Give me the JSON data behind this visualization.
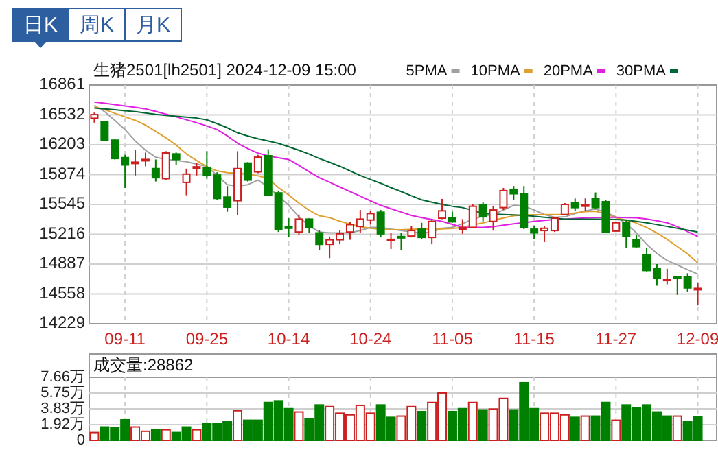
{
  "chart_data": [
    {
      "type": "candlestick",
      "title": "生猪2501[lh2501] 2024-12-09 15:00",
      "annotations": [
        "日K",
        "周K",
        "月K"
      ],
      "categories": [
        null,
        null,
        null,
        "09-11",
        null,
        null,
        null,
        null,
        null,
        null,
        null,
        "09-25",
        null,
        null,
        null,
        null,
        null,
        null,
        null,
        "10-14",
        null,
        null,
        null,
        null,
        null,
        null,
        null,
        "10-24",
        null,
        null,
        null,
        null,
        null,
        null,
        null,
        "11-05",
        null,
        null,
        null,
        null,
        null,
        null,
        null,
        "11-15",
        null,
        null,
        null,
        null,
        null,
        null,
        null,
        "11-27",
        null,
        null,
        null,
        null,
        null,
        null,
        null,
        "12-09"
      ],
      "ohlc": [
        [
          16495,
          16557,
          16446,
          16535
        ],
        [
          16456,
          16466,
          16244,
          16254
        ],
        [
          16254,
          16264,
          16041,
          16051
        ],
        [
          16061,
          16092,
          15727,
          15980
        ],
        [
          15996,
          16142,
          15864,
          16011
        ],
        [
          16031,
          16117,
          15965,
          16041
        ],
        [
          15940,
          16041,
          15798,
          15839
        ],
        [
          15829,
          16132,
          15813,
          16112
        ],
        [
          16102,
          16117,
          15980,
          16041
        ],
        [
          15788,
          15940,
          15646,
          15879
        ],
        [
          15950,
          16001,
          15864,
          15960
        ],
        [
          15950,
          16132,
          15829,
          15864
        ],
        [
          15869,
          15899,
          15596,
          15611
        ],
        [
          15626,
          15748,
          15464,
          15515
        ],
        [
          15586,
          16132,
          15424,
          15940
        ],
        [
          16001,
          16011,
          15798,
          15813
        ],
        [
          15904,
          16092,
          15889,
          16066
        ],
        [
          16082,
          16153,
          15636,
          15646
        ],
        [
          15672,
          15697,
          15241,
          15272
        ],
        [
          15297,
          15393,
          15181,
          15287
        ],
        [
          15241,
          15434,
          15206,
          15383
        ],
        [
          15383,
          15393,
          15231,
          15292
        ],
        [
          15231,
          15257,
          15039,
          15105
        ],
        [
          15105,
          15191,
          14953,
          15155
        ],
        [
          15155,
          15257,
          15105,
          15221
        ],
        [
          15241,
          15348,
          15155,
          15322
        ],
        [
          15302,
          15484,
          15231,
          15383
        ],
        [
          15373,
          15474,
          15322,
          15444
        ],
        [
          15459,
          15484,
          15181,
          15221
        ],
        [
          15150,
          15231,
          15054,
          15160
        ],
        [
          15191,
          15231,
          15044,
          15181
        ],
        [
          15196,
          15307,
          15181,
          15257
        ],
        [
          15272,
          15343,
          15160,
          15181
        ],
        [
          15181,
          15383,
          15105,
          15358
        ],
        [
          15393,
          15606,
          15383,
          15474
        ],
        [
          15398,
          15464,
          15343,
          15353
        ],
        [
          15277,
          15383,
          15221,
          15287
        ],
        [
          15292,
          15545,
          15282,
          15525
        ],
        [
          15545,
          15575,
          15358,
          15408
        ],
        [
          15358,
          15525,
          15256,
          15484
        ],
        [
          15510,
          15727,
          15484,
          15697
        ],
        [
          15712,
          15748,
          15596,
          15662
        ],
        [
          15662,
          15748,
          15272,
          15292
        ],
        [
          15272,
          15312,
          15160,
          15231
        ],
        [
          15257,
          15307,
          15130,
          15282
        ],
        [
          15257,
          15408,
          15241,
          15393
        ],
        [
          15434,
          15560,
          15424,
          15545
        ],
        [
          15560,
          15611,
          15474,
          15510
        ],
        [
          15530,
          15611,
          15474,
          15540
        ],
        [
          15611,
          15677,
          15494,
          15510
        ],
        [
          15575,
          15596,
          15231,
          15241
        ],
        [
          15251,
          15358,
          15241,
          15343
        ],
        [
          15343,
          15373,
          15069,
          15191
        ],
        [
          15155,
          15206,
          15069,
          15079
        ],
        [
          14988,
          15069,
          14806,
          14816
        ],
        [
          14836,
          14887,
          14649,
          14735
        ],
        [
          14710,
          14836,
          14664,
          14720
        ],
        [
          14750,
          14750,
          14548,
          14740
        ],
        [
          14750,
          14786,
          14583,
          14624
        ],
        [
          14609,
          14685,
          14431,
          14619
        ]
      ],
      "series": [
        {
          "name": "5PMA",
          "type": "line",
          "color": "#a0a0a0",
          "values": [
            16638,
            16568,
            16472,
            16370,
            16244,
            16142,
            16066,
            16041,
            16031,
            16016,
            15990,
            15965,
            15864,
            15763,
            15748,
            15763,
            15813,
            15737,
            15636,
            15535,
            15408,
            15307,
            15241,
            15231,
            15231,
            15231,
            15257,
            15292,
            15292,
            15272,
            15257,
            15241,
            15231,
            15241,
            15282,
            15292,
            15332,
            15383,
            15418,
            15434,
            15484,
            15535,
            15525,
            15484,
            15434,
            15403,
            15408,
            15444,
            15474,
            15494,
            15459,
            15408,
            15332,
            15231,
            15105,
            15004,
            14928,
            14877,
            14826,
            14776
          ]
        },
        {
          "name": "10PMA",
          "type": "line",
          "color": "#e0a030",
          "values": [
            16623,
            16590,
            16550,
            16510,
            16472,
            16420,
            16350,
            16280,
            16200,
            16100,
            16030,
            15960,
            15915,
            15895,
            15889,
            15880,
            15860,
            15830,
            15730,
            15650,
            15560,
            15480,
            15420,
            15400,
            15360,
            15330,
            15300,
            15282,
            15270,
            15265,
            15265,
            15270,
            15272,
            15272,
            15275,
            15280,
            15290,
            15320,
            15340,
            15370,
            15395,
            15420,
            15430,
            15432,
            15434,
            15434,
            15436,
            15450,
            15465,
            15470,
            15440,
            15400,
            15370,
            15340,
            15290,
            15230,
            15160,
            15080,
            15000,
            14900
          ]
        },
        {
          "name": "20PMA",
          "type": "line",
          "color": "#e020e0",
          "values": [
            16674,
            16660,
            16645,
            16630,
            16615,
            16598,
            16570,
            16540,
            16510,
            16478,
            16446,
            16410,
            16370,
            16300,
            16220,
            16160,
            16110,
            16080,
            16060,
            16041,
            15975,
            15905,
            15839,
            15790,
            15738,
            15687,
            15636,
            15585,
            15535,
            15498,
            15461,
            15424,
            15400,
            15379,
            15358,
            15325,
            15292,
            15292,
            15292,
            15300,
            15316,
            15332,
            15345,
            15358,
            15370,
            15378,
            15383,
            15390,
            15396,
            15400,
            15403,
            15403,
            15400,
            15398,
            15385,
            15365,
            15343,
            15300,
            15245,
            15191
          ]
        },
        {
          "name": "30PMA",
          "type": "line",
          "color": "#006633",
          "values": [
            16608,
            16598,
            16588,
            16578,
            16568,
            16552,
            16537,
            16527,
            16517,
            16507,
            16497,
            16477,
            16436,
            16390,
            16335,
            16300,
            16269,
            16245,
            16218,
            16180,
            16142,
            16100,
            16051,
            16010,
            15965,
            15915,
            15864,
            15820,
            15778,
            15730,
            15687,
            15640,
            15596,
            15570,
            15545,
            15525,
            15510,
            15480,
            15444,
            15440,
            15434,
            15430,
            15424,
            15414,
            15403,
            15393,
            15383,
            15383,
            15383,
            15383,
            15383,
            15378,
            15373,
            15358,
            15343,
            15323,
            15302,
            15282,
            15262,
            15241
          ]
        }
      ],
      "ylim": [
        14229,
        16861
      ],
      "yticks": [
        14229,
        14558,
        14887,
        15216,
        15545,
        15874,
        16203,
        16532,
        16861
      ],
      "grid": true,
      "legend": "top right"
    },
    {
      "type": "bar",
      "title": "成交量:28862",
      "categories": [
        null,
        null,
        null,
        null,
        null,
        null,
        null,
        null,
        null,
        null,
        null,
        null,
        null,
        null,
        null,
        null,
        null,
        null,
        null,
        null,
        null,
        null,
        null,
        null,
        null,
        null,
        null,
        null,
        null,
        null,
        null,
        null,
        null,
        null,
        null,
        null,
        null,
        null,
        null,
        null,
        null,
        null,
        null,
        null,
        null,
        null,
        null,
        null,
        null,
        null,
        null,
        null,
        null,
        null,
        null,
        null,
        null,
        null,
        null,
        null
      ],
      "values": [
        0.95,
        1.62,
        1.5,
        2.5,
        1.62,
        1.1,
        1.28,
        1.28,
        0.95,
        1.62,
        1.28,
        2.0,
        2.0,
        2.3,
        3.6,
        2.45,
        2.45,
        4.6,
        4.8,
        3.85,
        3.45,
        2.6,
        4.3,
        4.1,
        3.3,
        3.1,
        4.25,
        3.3,
        4.3,
        2.8,
        2.95,
        4.1,
        3.5,
        4.6,
        5.75,
        3.5,
        3.85,
        4.6,
        3.7,
        3.8,
        5.1,
        3.7,
        7.0,
        3.85,
        3.3,
        3.3,
        3.1,
        2.8,
        2.95,
        2.95,
        4.6,
        2.45,
        4.3,
        3.95,
        4.3,
        3.45,
        2.95,
        2.95,
        2.3,
        2.8862
      ],
      "colors": [
        "#cc2020",
        "#008000",
        "#008000",
        "#008000",
        "#cc2020",
        "#cc2020",
        "#008000",
        "#cc2020",
        "#008000",
        "#008000",
        "#cc2020",
        "#008000",
        "#008000",
        "#008000",
        "#cc2020",
        "#008000",
        "#008000",
        "#008000",
        "#008000",
        "#008000",
        "#cc2020",
        "#008000",
        "#008000",
        "#cc2020",
        "#cc2020",
        "#cc2020",
        "#cc2020",
        "#cc2020",
        "#008000",
        "#008000",
        "#cc2020",
        "#cc2020",
        "#008000",
        "#cc2020",
        "#cc2020",
        "#008000",
        "#008000",
        "#cc2020",
        "#008000",
        "#cc2020",
        "#cc2020",
        "#008000",
        "#008000",
        "#008000",
        "#cc2020",
        "#cc2020",
        "#cc2020",
        "#008000",
        "#cc2020",
        "#008000",
        "#008000",
        "#cc2020",
        "#008000",
        "#008000",
        "#008000",
        "#008000",
        "#008000",
        "#cc2020",
        "#008000",
        "#008000"
      ],
      "ylim": [
        0,
        7.66
      ],
      "yticks": [
        0,
        {
          "value": 1.92,
          "label": "1.92万"
        },
        {
          "value": 3.83,
          "label": "3.83万"
        },
        {
          "value": 5.75,
          "label": "5.75万"
        },
        {
          "value": 7.66,
          "label": "7.66万"
        }
      ],
      "grid": true,
      "tick_labels": "y"
    }
  ]
}
